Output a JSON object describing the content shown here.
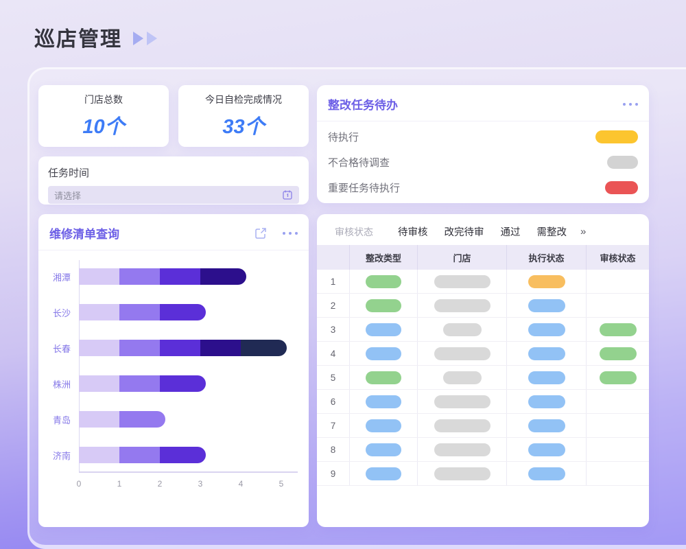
{
  "page": {
    "title": "巡店管理"
  },
  "colors": {
    "accent_purple": "#6C5FE6",
    "stat_blue": "#3E7CF6",
    "chart_label_purple": "#8679E8",
    "pill_green": "#93D28E",
    "pill_blue": "#92C2F5",
    "pill_orange": "#F8BE5F",
    "pill_gray": "#D9D9D9",
    "todo_yellow": "#FCC52F",
    "todo_gray": "#D3D3D3",
    "todo_red": "#EA5455"
  },
  "stats": [
    {
      "label": "门店总数",
      "value": "10个"
    },
    {
      "label": "今日自检完成情况",
      "value": "33个"
    }
  ],
  "task_time": {
    "label": "任务时间",
    "placeholder": "请选择"
  },
  "repair_card": {
    "title": "维修清单查询"
  },
  "chart_data": {
    "type": "bar",
    "orientation": "horizontal",
    "stacked": true,
    "title": "维修清单查询",
    "categories": [
      "湘潭",
      "长沙",
      "长春",
      "株洲",
      "青岛",
      "济南"
    ],
    "segments": [
      [
        1,
        1,
        1,
        1
      ],
      [
        1,
        1,
        1
      ],
      [
        1,
        1,
        1,
        1,
        1
      ],
      [
        1,
        1,
        1
      ],
      [
        1,
        1
      ],
      [
        1,
        1,
        1
      ]
    ],
    "totals": [
      4,
      3,
      5,
      3,
      2,
      3
    ],
    "segment_colors": [
      "#D7CAF6",
      "#9479EF",
      "#5B2FD8",
      "#2C0F8C",
      "#202A54"
    ],
    "xlim": [
      0,
      5
    ],
    "xticks": [
      "0",
      "1",
      "2",
      "3",
      "4",
      "5"
    ],
    "xlabel": "",
    "ylabel": "",
    "grid": false,
    "legend": false
  },
  "todo_card": {
    "title": "整改任务待办",
    "items": [
      {
        "label": "待执行",
        "color_key": "todo_yellow",
        "pill_width": 62
      },
      {
        "label": "不合格待调查",
        "color_key": "todo_gray",
        "pill_width": 45
      },
      {
        "label": "重要任务待执行",
        "color_key": "todo_red",
        "pill_width": 48
      }
    ]
  },
  "table_card": {
    "filter_label": "审核状态",
    "tabs": [
      "待审核",
      "改完待审",
      "通过",
      "需整改"
    ],
    "more_label": "»",
    "columns": [
      "整改类型",
      "门店",
      "执行状态",
      "审核状态"
    ],
    "rows": [
      {
        "num": "1",
        "pills": [
          [
            "pill_green",
            52
          ],
          [
            "pill_gray",
            82
          ],
          [
            "pill_orange",
            54
          ],
          null
        ]
      },
      {
        "num": "2",
        "pills": [
          [
            "pill_green",
            52
          ],
          [
            "pill_gray",
            82
          ],
          [
            "pill_blue",
            54
          ],
          null
        ]
      },
      {
        "num": "3",
        "pills": [
          [
            "pill_blue",
            52
          ],
          [
            "pill_gray",
            56
          ],
          [
            "pill_blue",
            54
          ],
          [
            "pill_green",
            54
          ]
        ]
      },
      {
        "num": "4",
        "pills": [
          [
            "pill_blue",
            52
          ],
          [
            "pill_gray",
            82
          ],
          [
            "pill_blue",
            54
          ],
          [
            "pill_green",
            54
          ]
        ]
      },
      {
        "num": "5",
        "pills": [
          [
            "pill_green",
            52
          ],
          [
            "pill_gray",
            56
          ],
          [
            "pill_blue",
            54
          ],
          [
            "pill_green",
            54
          ]
        ]
      },
      {
        "num": "6",
        "pills": [
          [
            "pill_blue",
            52
          ],
          [
            "pill_gray",
            82
          ],
          [
            "pill_blue",
            54
          ],
          null
        ]
      },
      {
        "num": "7",
        "pills": [
          [
            "pill_blue",
            52
          ],
          [
            "pill_gray",
            82
          ],
          [
            "pill_blue",
            54
          ],
          null
        ]
      },
      {
        "num": "8",
        "pills": [
          [
            "pill_blue",
            52
          ],
          [
            "pill_gray",
            82
          ],
          [
            "pill_blue",
            54
          ],
          null
        ]
      },
      {
        "num": "9",
        "pills": [
          [
            "pill_blue",
            52
          ],
          [
            "pill_gray",
            82
          ],
          [
            "pill_blue",
            54
          ],
          null
        ]
      }
    ]
  }
}
